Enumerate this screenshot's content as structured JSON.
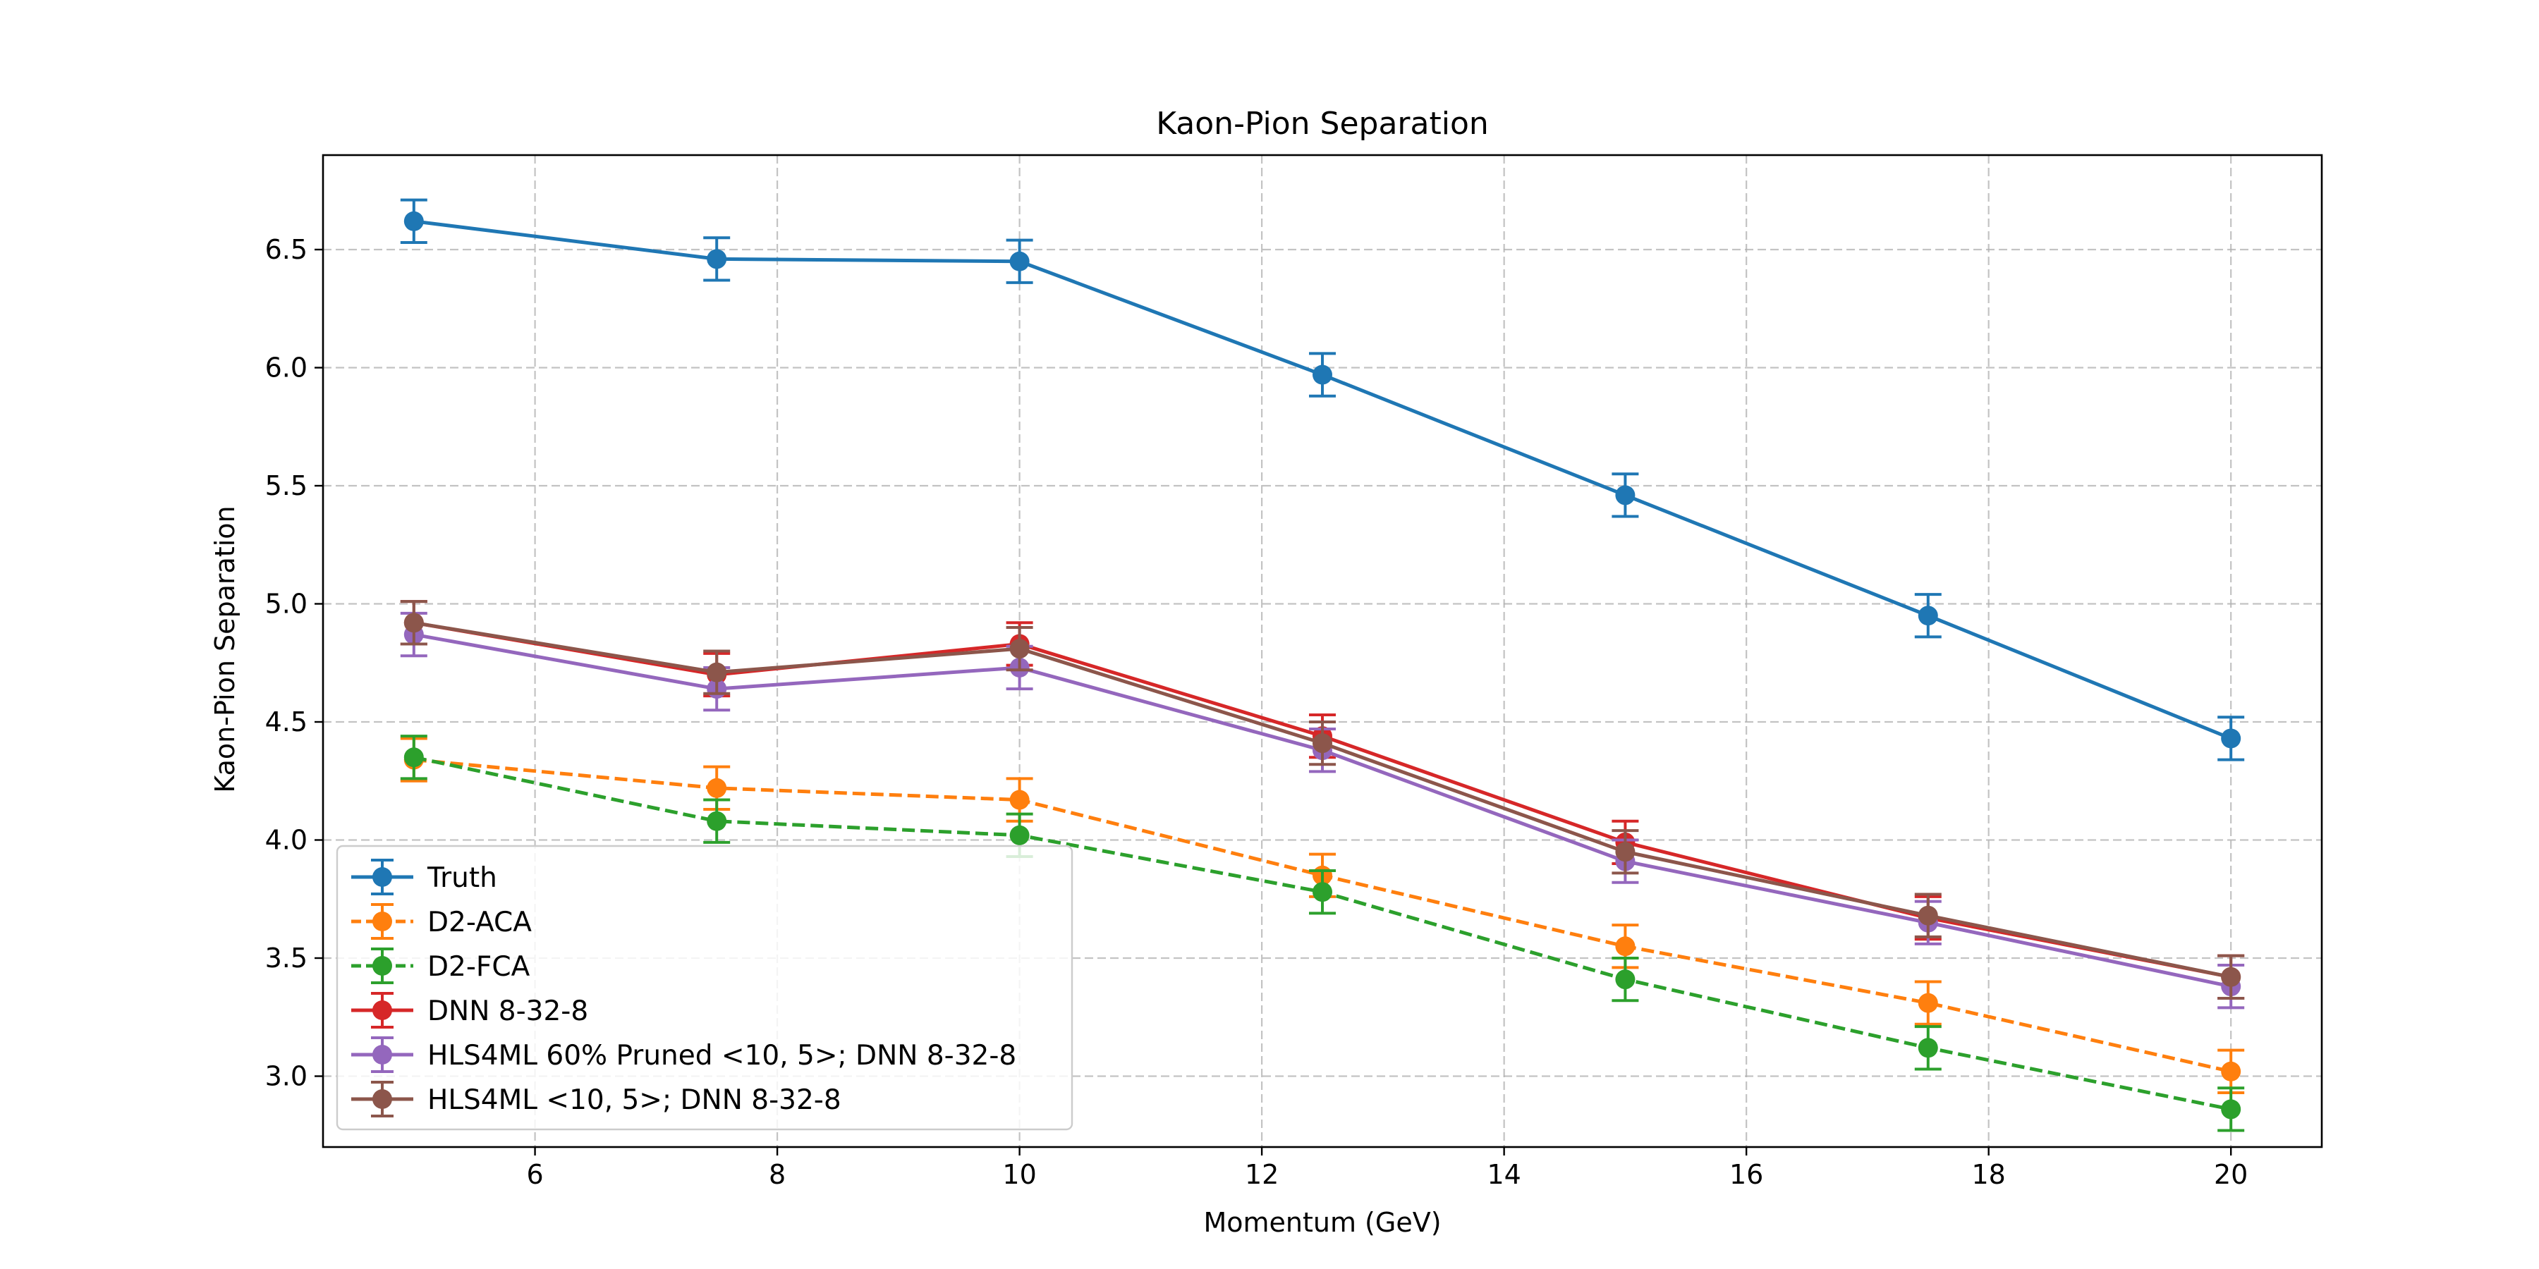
{
  "chart_data": {
    "type": "line",
    "title": "Kaon-Pion Separation",
    "xlabel": "Momentum (GeV)",
    "ylabel": "Kaon-Pion Separation",
    "xlim": [
      4.25,
      20.75
    ],
    "ylim": [
      2.7,
      6.9
    ],
    "x_ticks": [
      6,
      8,
      10,
      12,
      14,
      16,
      18,
      20
    ],
    "y_ticks": [
      3.0,
      3.5,
      4.0,
      4.5,
      5.0,
      5.5,
      6.0,
      6.5
    ],
    "grid": true,
    "legend_position": "lower-left",
    "x": [
      5,
      7.5,
      10,
      12.5,
      15,
      17.5,
      20
    ],
    "series": [
      {
        "name": "Truth",
        "color": "#1f77b4",
        "dashed": false,
        "values": [
          6.62,
          6.46,
          6.45,
          5.97,
          5.46,
          4.95,
          4.43
        ],
        "errors": [
          0.09,
          0.09,
          0.09,
          0.09,
          0.09,
          0.09,
          0.09
        ]
      },
      {
        "name": "D2-ACA",
        "color": "#ff7f0e",
        "dashed": true,
        "values": [
          4.34,
          4.22,
          4.17,
          3.85,
          3.55,
          3.31,
          3.02
        ],
        "errors": [
          0.09,
          0.09,
          0.09,
          0.09,
          0.09,
          0.09,
          0.09
        ]
      },
      {
        "name": "D2-FCA",
        "color": "#2ca02c",
        "dashed": true,
        "values": [
          4.35,
          4.08,
          4.02,
          3.78,
          3.41,
          3.12,
          2.86
        ],
        "errors": [
          0.09,
          0.09,
          0.09,
          0.09,
          0.09,
          0.09,
          0.09
        ]
      },
      {
        "name": "DNN 8-32-8",
        "color": "#d62728",
        "dashed": false,
        "values": [
          4.92,
          4.7,
          4.83,
          4.44,
          3.99,
          3.67,
          3.42
        ],
        "errors": [
          0.09,
          0.09,
          0.09,
          0.09,
          0.09,
          0.09,
          0.09
        ]
      },
      {
        "name": "HLS4ML 60% Pruned <10, 5>; DNN 8-32-8",
        "color": "#9467bd",
        "dashed": false,
        "values": [
          4.87,
          4.64,
          4.73,
          4.38,
          3.91,
          3.65,
          3.38
        ],
        "errors": [
          0.09,
          0.09,
          0.09,
          0.09,
          0.09,
          0.09,
          0.09
        ]
      },
      {
        "name": "HLS4ML <10, 5>; DNN 8-32-8",
        "color": "#8c564b",
        "dashed": false,
        "values": [
          4.92,
          4.71,
          4.81,
          4.41,
          3.95,
          3.68,
          3.42
        ],
        "errors": [
          0.09,
          0.09,
          0.09,
          0.09,
          0.09,
          0.09,
          0.09
        ]
      }
    ]
  }
}
